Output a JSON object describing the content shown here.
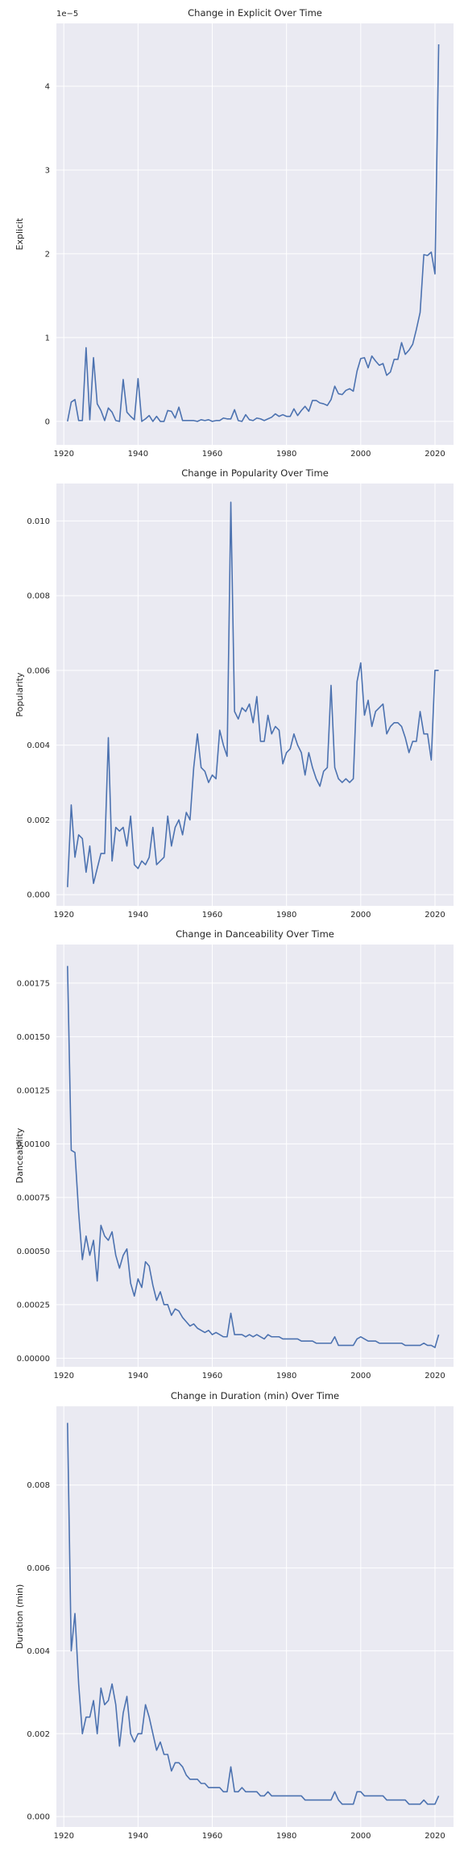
{
  "style": {
    "panel_bg": "#eaeaf2",
    "grid": "#ffffff",
    "line": "#4c72b0",
    "text": "#262626"
  },
  "years": [
    1921,
    1922,
    1923,
    1924,
    1925,
    1926,
    1927,
    1928,
    1929,
    1930,
    1931,
    1932,
    1933,
    1934,
    1935,
    1936,
    1937,
    1938,
    1939,
    1940,
    1941,
    1942,
    1943,
    1944,
    1945,
    1946,
    1947,
    1948,
    1949,
    1950,
    1951,
    1952,
    1953,
    1954,
    1955,
    1956,
    1957,
    1958,
    1959,
    1960,
    1961,
    1962,
    1963,
    1964,
    1965,
    1966,
    1967,
    1968,
    1969,
    1970,
    1971,
    1972,
    1973,
    1974,
    1975,
    1976,
    1977,
    1978,
    1979,
    1980,
    1981,
    1982,
    1983,
    1984,
    1985,
    1986,
    1987,
    1988,
    1989,
    1990,
    1991,
    1992,
    1993,
    1994,
    1995,
    1996,
    1997,
    1998,
    1999,
    2000,
    2001,
    2002,
    2003,
    2004,
    2005,
    2006,
    2007,
    2008,
    2009,
    2010,
    2011,
    2012,
    2013,
    2014,
    2015,
    2016,
    2017,
    2018,
    2019,
    2020,
    2021
  ],
  "chart_data": [
    {
      "type": "line",
      "title": "Change in Explicit Over Time",
      "xlabel": "",
      "ylabel": "Explicit",
      "offset_label": "1e−5",
      "xlim": [
        1918,
        2025
      ],
      "ylim": [
        -0.28,
        4.75
      ],
      "xticks": [
        1920,
        1940,
        1960,
        1980,
        2000,
        2020
      ],
      "xtick_labels": [
        "1920",
        "1940",
        "1960",
        "1980",
        "2000",
        "2020"
      ],
      "yticks": [
        0,
        1,
        2,
        3,
        4
      ],
      "ytick_labels": [
        "0",
        "1",
        "2",
        "3",
        "4"
      ],
      "grid": true,
      "series": [
        {
          "values": [
            0.0,
            0.23,
            0.26,
            0.01,
            0.01,
            0.88,
            0.02,
            0.76,
            0.21,
            0.13,
            0.01,
            0.16,
            0.11,
            0.01,
            0.0,
            0.5,
            0.11,
            0.06,
            0.02,
            0.51,
            0.0,
            0.03,
            0.07,
            0.0,
            0.06,
            0.0,
            0.0,
            0.13,
            0.12,
            0.04,
            0.17,
            0.01,
            0.01,
            0.01,
            0.01,
            0.0,
            0.02,
            0.01,
            0.02,
            0.0,
            0.01,
            0.01,
            0.04,
            0.03,
            0.03,
            0.14,
            0.01,
            0.0,
            0.08,
            0.02,
            0.01,
            0.04,
            0.03,
            0.01,
            0.03,
            0.05,
            0.09,
            0.06,
            0.08,
            0.06,
            0.06,
            0.15,
            0.07,
            0.13,
            0.18,
            0.12,
            0.25,
            0.25,
            0.22,
            0.21,
            0.19,
            0.26,
            0.42,
            0.33,
            0.32,
            0.37,
            0.39,
            0.36,
            0.6,
            0.75,
            0.76,
            0.64,
            0.78,
            0.72,
            0.67,
            0.69,
            0.55,
            0.59,
            0.74,
            0.74,
            0.94,
            0.8,
            0.85,
            0.92,
            1.1,
            1.3,
            1.99,
            1.98,
            2.02,
            1.76,
            4.5
          ]
        }
      ]
    },
    {
      "type": "line",
      "title": "Change in Popularity Over Time",
      "xlabel": "",
      "ylabel": "Popularity",
      "offset_label": "",
      "xlim": [
        1918,
        2025
      ],
      "ylim": [
        -0.0003,
        0.011
      ],
      "xticks": [
        1920,
        1940,
        1960,
        1980,
        2000,
        2020
      ],
      "xtick_labels": [
        "1920",
        "1940",
        "1960",
        "1980",
        "2000",
        "2020"
      ],
      "yticks": [
        0,
        0.002,
        0.004,
        0.006,
        0.008,
        0.01
      ],
      "ytick_labels": [
        "0.000",
        "0.002",
        "0.004",
        "0.006",
        "0.008",
        "0.010"
      ],
      "grid": true,
      "series": [
        {
          "values": [
            0.0002,
            0.0024,
            0.001,
            0.0016,
            0.0015,
            0.0006,
            0.0013,
            0.0003,
            0.0007,
            0.0011,
            0.0011,
            0.0042,
            0.0009,
            0.0018,
            0.0017,
            0.0018,
            0.0013,
            0.0021,
            0.0008,
            0.0007,
            0.0009,
            0.0008,
            0.001,
            0.0018,
            0.0008,
            0.0009,
            0.001,
            0.0021,
            0.0013,
            0.0018,
            0.002,
            0.0016,
            0.0022,
            0.002,
            0.0034,
            0.0043,
            0.0034,
            0.0033,
            0.003,
            0.0032,
            0.0031,
            0.0044,
            0.004,
            0.0037,
            0.0105,
            0.0049,
            0.0047,
            0.005,
            0.0049,
            0.0051,
            0.0046,
            0.0053,
            0.0041,
            0.0041,
            0.0048,
            0.0043,
            0.0045,
            0.0044,
            0.0035,
            0.0038,
            0.0039,
            0.0043,
            0.004,
            0.0038,
            0.0032,
            0.0038,
            0.0034,
            0.0031,
            0.0029,
            0.0033,
            0.0034,
            0.0056,
            0.0034,
            0.0031,
            0.003,
            0.0031,
            0.003,
            0.0031,
            0.0057,
            0.0062,
            0.0048,
            0.0052,
            0.0045,
            0.0049,
            0.005,
            0.0051,
            0.0043,
            0.0045,
            0.0046,
            0.0046,
            0.0045,
            0.0042,
            0.0038,
            0.0041,
            0.0041,
            0.0049,
            0.0043,
            0.0043,
            0.0036,
            0.006,
            0.006
          ]
        }
      ]
    },
    {
      "type": "line",
      "title": "Change in Danceability Over Time",
      "xlabel": "",
      "ylabel": "Danceability",
      "offset_label": "",
      "xlim": [
        1918,
        2025
      ],
      "ylim": [
        -4e-05,
        0.00193
      ],
      "xticks": [
        1920,
        1940,
        1960,
        1980,
        2000,
        2020
      ],
      "xtick_labels": [
        "1920",
        "1940",
        "1960",
        "1980",
        "2000",
        "2020"
      ],
      "yticks": [
        0,
        0.00025,
        0.0005,
        0.00075,
        0.001,
        0.00125,
        0.0015,
        0.00175
      ],
      "ytick_labels": [
        "0.00000",
        "0.00025",
        "0.00050",
        "0.00075",
        "0.00100",
        "0.00125",
        "0.00150",
        "0.00175"
      ],
      "grid": true,
      "series": [
        {
          "values": [
            0.00183,
            0.00097,
            0.00096,
            0.00068,
            0.00046,
            0.00057,
            0.00048,
            0.00055,
            0.00036,
            0.00062,
            0.00057,
            0.00055,
            0.00059,
            0.00048,
            0.00042,
            0.00048,
            0.00051,
            0.00035,
            0.00029,
            0.00037,
            0.00033,
            0.00045,
            0.00043,
            0.00034,
            0.00027,
            0.00031,
            0.00025,
            0.00025,
            0.0002,
            0.00023,
            0.00022,
            0.00019,
            0.00017,
            0.00015,
            0.00016,
            0.00014,
            0.00013,
            0.00012,
            0.00013,
            0.00011,
            0.00012,
            0.00011,
            0.0001,
            0.0001,
            0.00021,
            0.00011,
            0.00011,
            0.00011,
            0.0001,
            0.00011,
            0.0001,
            0.00011,
            0.0001,
            9e-05,
            0.00011,
            0.0001,
            0.0001,
            0.0001,
            9e-05,
            9e-05,
            9e-05,
            9e-05,
            9e-05,
            8e-05,
            8e-05,
            8e-05,
            8e-05,
            7e-05,
            7e-05,
            7e-05,
            7e-05,
            7e-05,
            0.0001,
            6e-05,
            6e-05,
            6e-05,
            6e-05,
            6e-05,
            9e-05,
            0.0001,
            9e-05,
            8e-05,
            8e-05,
            8e-05,
            7e-05,
            7e-05,
            7e-05,
            7e-05,
            7e-05,
            7e-05,
            7e-05,
            6e-05,
            6e-05,
            6e-05,
            6e-05,
            6e-05,
            7e-05,
            6e-05,
            6e-05,
            5e-05,
            0.00011
          ]
        }
      ]
    },
    {
      "type": "line",
      "title": "Change in Duration (min) Over Time",
      "xlabel": "",
      "ylabel": "Duration (min)",
      "offset_label": "",
      "xlim": [
        1918,
        2025
      ],
      "ylim": [
        -0.00025,
        0.0099
      ],
      "xticks": [
        1920,
        1940,
        1960,
        1980,
        2000,
        2020
      ],
      "xtick_labels": [
        "1920",
        "1940",
        "1960",
        "1980",
        "2000",
        "2020"
      ],
      "yticks": [
        0,
        0.002,
        0.004,
        0.006,
        0.008
      ],
      "ytick_labels": [
        "0.000",
        "0.002",
        "0.004",
        "0.006",
        "0.008"
      ],
      "grid": true,
      "series": [
        {
          "values": [
            0.0095,
            0.004,
            0.0049,
            0.0032,
            0.002,
            0.0024,
            0.0024,
            0.0028,
            0.002,
            0.0031,
            0.0027,
            0.0028,
            0.0032,
            0.0027,
            0.0017,
            0.0025,
            0.0029,
            0.002,
            0.0018,
            0.002,
            0.002,
            0.0027,
            0.0024,
            0.002,
            0.0016,
            0.0018,
            0.0015,
            0.0015,
            0.0011,
            0.0013,
            0.0013,
            0.0012,
            0.001,
            0.0009,
            0.0009,
            0.0009,
            0.0008,
            0.0008,
            0.0007,
            0.0007,
            0.0007,
            0.0007,
            0.0006,
            0.0006,
            0.0012,
            0.0006,
            0.0006,
            0.0007,
            0.0006,
            0.0006,
            0.0006,
            0.0006,
            0.0005,
            0.0005,
            0.0006,
            0.0005,
            0.0005,
            0.0005,
            0.0005,
            0.0005,
            0.0005,
            0.0005,
            0.0005,
            0.0005,
            0.0004,
            0.0004,
            0.0004,
            0.0004,
            0.0004,
            0.0004,
            0.0004,
            0.0004,
            0.0006,
            0.0004,
            0.0003,
            0.0003,
            0.0003,
            0.0003,
            0.0006,
            0.0006,
            0.0005,
            0.0005,
            0.0005,
            0.0005,
            0.0005,
            0.0005,
            0.0004,
            0.0004,
            0.0004,
            0.0004,
            0.0004,
            0.0004,
            0.0003,
            0.0003,
            0.0003,
            0.0003,
            0.0004,
            0.0003,
            0.0003,
            0.0003,
            0.0005
          ]
        }
      ]
    }
  ]
}
